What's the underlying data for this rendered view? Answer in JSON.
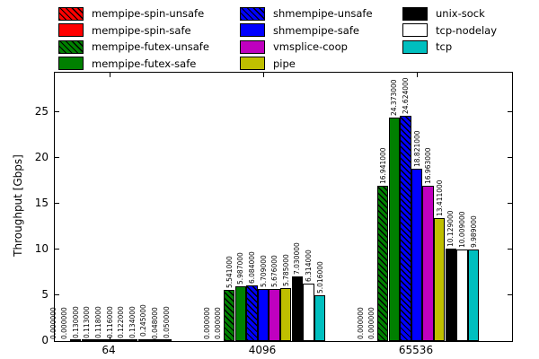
{
  "chart_data": {
    "type": "bar",
    "title": "",
    "xlabel": "",
    "ylabel": "Throughput [Gbps]",
    "categories": [
      "64",
      "4096",
      "65536"
    ],
    "yticks": [
      0,
      5,
      10,
      15,
      20,
      25
    ],
    "ylim": [
      0,
      29.3
    ],
    "grid": false,
    "legend_position": "top",
    "value_label_format": "%.6f",
    "bar_edge_color": "#000000",
    "hatch_style": "diagonal",
    "series": [
      {
        "name": "mempipe-spin-unsafe",
        "color": "#ff0000",
        "hatch": true,
        "values": [
          0.0,
          0.0,
          0.0
        ],
        "labels": [
          "0.000000",
          "0.000000",
          "0.000000"
        ]
      },
      {
        "name": "mempipe-spin-safe",
        "color": "#ff0000",
        "hatch": false,
        "values": [
          0.0,
          0.0,
          0.0
        ],
        "labels": [
          "0.000000",
          "0.000000",
          "0.000000"
        ]
      },
      {
        "name": "mempipe-futex-unsafe",
        "color": "#008000",
        "hatch": true,
        "values": [
          0.13,
          5.541,
          16.941
        ],
        "labels": [
          "0.130000",
          "5.541000",
          "16.941000"
        ]
      },
      {
        "name": "mempipe-futex-safe",
        "color": "#008000",
        "hatch": false,
        "values": [
          0.113,
          5.987,
          24.373
        ],
        "labels": [
          "0.113000",
          "5.987000",
          "24.373000"
        ]
      },
      {
        "name": "shmempipe-unsafe",
        "color": "#0000ff",
        "hatch": true,
        "values": [
          0.118,
          6.084,
          24.624
        ],
        "labels": [
          "0.118000",
          "6.084000",
          "24.624000"
        ]
      },
      {
        "name": "shmempipe-safe",
        "color": "#0000ff",
        "hatch": false,
        "values": [
          0.116,
          5.709,
          18.821
        ],
        "labels": [
          "0.116000",
          "5.709000",
          "18.821000"
        ]
      },
      {
        "name": "vmsplice-coop",
        "color": "#bf00bf",
        "hatch": false,
        "values": [
          0.122,
          5.676,
          16.963
        ],
        "labels": [
          "0.122000",
          "5.676000",
          "16.963000"
        ]
      },
      {
        "name": "pipe",
        "color": "#bfbf00",
        "hatch": false,
        "values": [
          0.134,
          5.785,
          13.411
        ],
        "labels": [
          "0.134000",
          "5.785000",
          "13.411000"
        ]
      },
      {
        "name": "unix-sock",
        "color": "#000000",
        "hatch": false,
        "values": [
          0.245,
          7.03,
          10.129
        ],
        "labels": [
          "0.245000",
          "7.030000",
          "10.129000"
        ]
      },
      {
        "name": "tcp-nodelay",
        "color": "#ffffff",
        "hatch": false,
        "values": [
          0.048,
          6.314,
          10.009
        ],
        "labels": [
          "0.048000",
          "6.314000",
          "10.009000"
        ]
      },
      {
        "name": "tcp",
        "color": "#00bfbf",
        "hatch": false,
        "values": [
          0.05,
          5.016,
          9.989
        ],
        "labels": [
          "0.050000",
          "5.016000",
          "9.989000"
        ]
      }
    ]
  },
  "legend": {
    "columns": [
      [
        0,
        1,
        2,
        3
      ],
      [
        4,
        5,
        6,
        7
      ],
      [
        8,
        9,
        10
      ]
    ]
  }
}
